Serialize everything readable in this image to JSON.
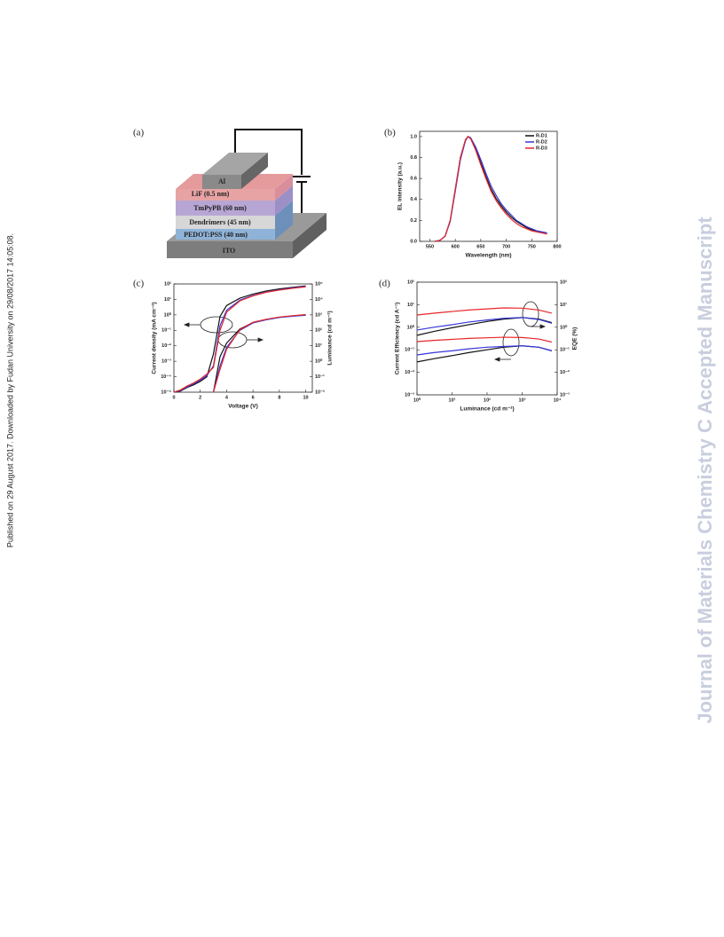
{
  "side_note": "Published on 29 August 2017. Downloaded by Fudan University on 29/08/2017 14:05:08.",
  "watermark": "Journal of Materials Chemistry C Accepted Manuscript",
  "figure": {
    "panel_labels": [
      "(a)",
      "(b)",
      "(c)",
      "(d)"
    ],
    "device_layers": [
      "Al",
      "LiF (0.5 nm)",
      "TmPyPB (60 nm)",
      "Dendrimers (45 nm)",
      "PEDOT:PSS (40 nm)",
      "ITO"
    ]
  },
  "chart_data": [
    {
      "type": "line",
      "x_label": "Wavelength (nm)",
      "y_label": "EL intensity (a.u.)",
      "x": [
        560,
        570,
        580,
        590,
        600,
        610,
        620,
        625,
        630,
        640,
        650,
        660,
        670,
        680,
        690,
        700,
        710,
        720,
        730,
        740,
        750,
        760,
        770,
        780
      ],
      "series": [
        {
          "name": "R-D1",
          "color": "#111111",
          "values": [
            0,
            0.01,
            0.05,
            0.2,
            0.5,
            0.8,
            0.97,
            1.0,
            0.98,
            0.88,
            0.75,
            0.62,
            0.5,
            0.41,
            0.34,
            0.28,
            0.23,
            0.19,
            0.16,
            0.13,
            0.11,
            0.1,
            0.09,
            0.08
          ]
        },
        {
          "name": "R-D2",
          "color": "#3535d8",
          "values": [
            0,
            0.01,
            0.05,
            0.19,
            0.48,
            0.78,
            0.96,
            1.0,
            0.99,
            0.9,
            0.78,
            0.65,
            0.53,
            0.44,
            0.36,
            0.3,
            0.25,
            0.2,
            0.17,
            0.14,
            0.12,
            0.1,
            0.09,
            0.08
          ]
        },
        {
          "name": "R-D3",
          "color": "#e8262a",
          "values": [
            0,
            0.01,
            0.05,
            0.2,
            0.5,
            0.8,
            0.97,
            1.0,
            0.98,
            0.87,
            0.73,
            0.6,
            0.48,
            0.39,
            0.32,
            0.26,
            0.21,
            0.17,
            0.14,
            0.12,
            0.1,
            0.09,
            0.08,
            0.07
          ]
        }
      ],
      "xlim": [
        530,
        800
      ],
      "xticks": [
        550,
        600,
        650,
        700,
        750,
        800
      ],
      "ylim": [
        0,
        1.05
      ],
      "yticks": [
        {
          "value": 0,
          "label": "0.0"
        },
        {
          "value": 0.2,
          "label": "0.2"
        },
        {
          "value": 0.4,
          "label": "0.4"
        },
        {
          "value": 0.6,
          "label": "0.6"
        },
        {
          "value": 0.8,
          "label": "0.8"
        },
        {
          "value": 1,
          "label": "1.0"
        }
      ],
      "legend": "upper-right"
    },
    {
      "type": "line",
      "x_label": "Voltage (V)",
      "y_label": "Current density (mA cm⁻²)",
      "y2_label": "Luminance (cd m⁻²)",
      "log_y": true,
      "x": [
        0,
        0.5,
        1,
        1.5,
        2,
        2.5,
        3,
        3.5,
        4,
        5,
        6,
        7,
        8,
        9,
        10
      ],
      "series": [
        {
          "color": "#111111",
          "values": [
            1e-05,
            1.2e-05,
            2e-05,
            3e-05,
            5e-05,
            0.0001,
            0.003,
            0.8,
            4,
            12,
            22,
            35,
            48,
            60,
            75
          ]
        },
        {
          "color": "#3535d8",
          "values": [
            1e-05,
            1.3e-05,
            2.2e-05,
            3.5e-05,
            6e-05,
            0.00012,
            0.0005,
            0.2,
            2,
            9,
            18,
            30,
            42,
            55,
            70
          ]
        },
        {
          "color": "#e8262a",
          "values": [
            1e-05,
            1.4e-05,
            2.5e-05,
            4e-05,
            7e-05,
            0.00015,
            0.0004,
            0.1,
            1.5,
            8,
            17,
            29,
            40,
            52,
            65
          ]
        },
        {
          "color": "#111111",
          "axis": "y2",
          "values": [
            null,
            null,
            null,
            null,
            null,
            null,
            0.01,
            2,
            15,
            120,
            320,
            500,
            700,
            850,
            1000
          ]
        },
        {
          "color": "#3535d8",
          "axis": "y2",
          "values": [
            null,
            null,
            null,
            null,
            null,
            null,
            0.01,
            0.5,
            8,
            100,
            300,
            480,
            680,
            820,
            950
          ]
        },
        {
          "color": "#e8262a",
          "axis": "y2",
          "values": [
            null,
            null,
            null,
            null,
            null,
            null,
            0.01,
            0.3,
            6,
            110,
            330,
            520,
            720,
            880,
            1050
          ]
        }
      ],
      "xlim": [
        0,
        10.5
      ],
      "xticks": [
        0,
        2,
        4,
        6,
        8,
        10
      ],
      "ylim": [
        1e-05,
        100
      ],
      "yticks": [
        {
          "value": 1e-05,
          "label": "10⁻⁵"
        },
        {
          "value": 0.0001,
          "label": "10⁻⁴"
        },
        {
          "value": 0.001,
          "label": "10⁻³"
        },
        {
          "value": 0.01,
          "label": "10⁻²"
        },
        {
          "value": 0.1,
          "label": "10⁻¹"
        },
        {
          "value": 1,
          "label": "10⁰"
        },
        {
          "value": 10,
          "label": "10¹"
        },
        {
          "value": 100,
          "label": "10²"
        }
      ],
      "y2lim": [
        0.01,
        100000
      ],
      "y2ticks": [
        {
          "value": 0.01,
          "label": "10⁻²"
        },
        {
          "value": 0.1,
          "label": "10⁻¹"
        },
        {
          "value": 1,
          "label": "10⁰"
        },
        {
          "value": 10,
          "label": "10¹"
        },
        {
          "value": 100,
          "label": "10²"
        },
        {
          "value": 1000,
          "label": "10³"
        },
        {
          "value": 10000,
          "label": "10⁴"
        },
        {
          "value": 100000,
          "label": "10⁵"
        }
      ]
    },
    {
      "type": "line",
      "x_label": "Luminance (cd m⁻²)",
      "y_label": "Current Efficiency (cd A⁻¹)",
      "y2_label": "EQE (%)",
      "log_x": true,
      "log_y": true,
      "x": [
        1,
        3,
        10,
        30,
        100,
        300,
        1000,
        3000,
        7000
      ],
      "series": [
        {
          "color": "#111111",
          "values": [
            0.029,
            0.04,
            0.055,
            0.075,
            0.1,
            0.13,
            0.15,
            0.13,
            0.09
          ]
        },
        {
          "color": "#3535d8",
          "values": [
            0.059,
            0.075,
            0.09,
            0.11,
            0.13,
            0.14,
            0.15,
            0.13,
            0.09
          ]
        },
        {
          "color": "#e8262a",
          "values": [
            0.23,
            0.26,
            0.29,
            0.32,
            0.34,
            0.36,
            0.35,
            0.3,
            0.22
          ]
        },
        {
          "color": "#111111",
          "axis": "y2",
          "values": [
            0.44,
            0.65,
            0.95,
            1.3,
            1.8,
            2.3,
            2.7,
            2.3,
            1.6
          ]
        },
        {
          "color": "#3535d8",
          "axis": "y2",
          "values": [
            0.75,
            1.0,
            1.3,
            1.7,
            2.1,
            2.5,
            2.7,
            2.2,
            1.5
          ]
        },
        {
          "color": "#e8262a",
          "axis": "y2",
          "values": [
            3.5,
            4.2,
            5,
            5.8,
            6.5,
            7.2,
            7.0,
            5.8,
            4.2
          ]
        }
      ],
      "xlim": [
        1,
        10000
      ],
      "xticks": [
        {
          "value": 1,
          "label": "10⁰"
        },
        {
          "value": 10,
          "label": "10¹"
        },
        {
          "value": 100,
          "label": "10²"
        },
        {
          "value": 1000,
          "label": "10³"
        },
        {
          "value": 10000,
          "label": "10⁴"
        }
      ],
      "ylim": [
        0.001,
        100
      ],
      "yticks": [
        {
          "value": 0.001,
          "label": "10⁻³"
        },
        {
          "value": 0.01,
          "label": "10⁻²"
        },
        {
          "value": 0.1,
          "label": "10⁻¹"
        },
        {
          "value": 1,
          "label": "10⁰"
        },
        {
          "value": 10,
          "label": "10¹"
        },
        {
          "value": 100,
          "label": "10²"
        }
      ],
      "y2lim": [
        0.001,
        100
      ],
      "y2ticks": [
        {
          "value": 0.001,
          "label": "10⁻³"
        },
        {
          "value": 0.01,
          "label": "10⁻²"
        },
        {
          "value": 0.1,
          "label": "10⁻¹"
        },
        {
          "value": 1,
          "label": "10⁰"
        },
        {
          "value": 10,
          "label": "10¹"
        },
        {
          "value": 100,
          "label": "10²"
        }
      ]
    }
  ]
}
